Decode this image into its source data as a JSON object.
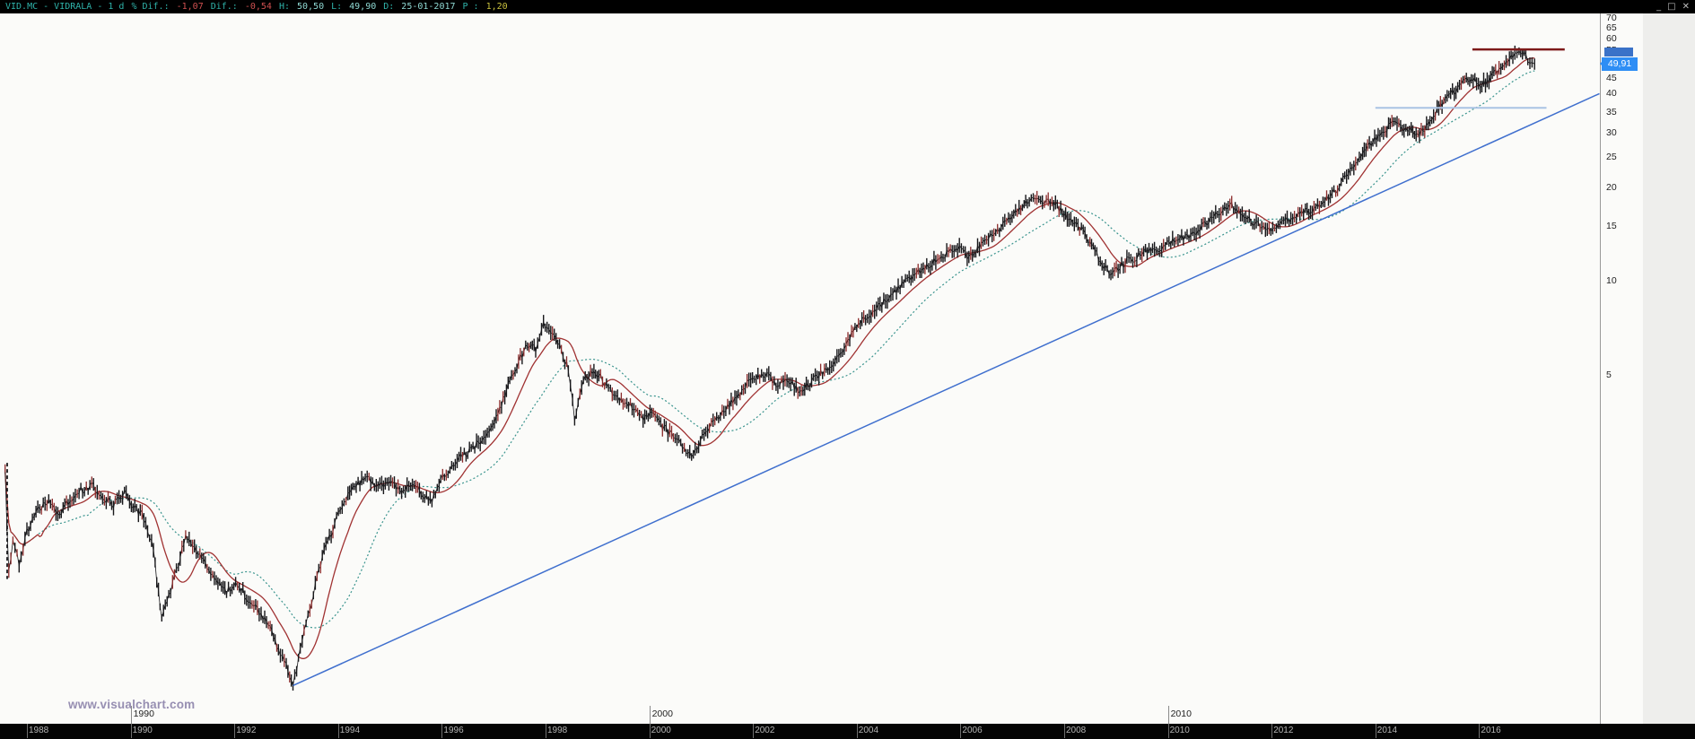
{
  "window": {
    "title_segments": [
      {
        "text": "VID.MC - VIDRALA - 1 d",
        "color": "#2fb3aa"
      },
      {
        "text": "% Dif.:",
        "color": "#2fb3aa"
      },
      {
        "text": "-1,07",
        "color": "#cf5050"
      },
      {
        "text": "Dif.:",
        "color": "#2fb3aa"
      },
      {
        "text": "-0,54",
        "color": "#cf5050"
      },
      {
        "text": "H:",
        "color": "#2fb3aa"
      },
      {
        "text": "50,50",
        "color": "#8fd8d2"
      },
      {
        "text": "L:",
        "color": "#2fb3aa"
      },
      {
        "text": "49,90",
        "color": "#8fd8d2"
      },
      {
        "text": "D:",
        "color": "#2fb3aa"
      },
      {
        "text": "25-01-2017",
        "color": "#8fd8d2"
      },
      {
        "text": "P :",
        "color": "#2fb3aa"
      },
      {
        "text": "1,20",
        "color": "#c9c13e"
      }
    ],
    "controls": {
      "minimize": "_",
      "maximize": "□",
      "close": "✕"
    }
  },
  "watermark": "www.visualchart.com",
  "chart_data": {
    "type": "candlestick",
    "symbol": "VID.MC",
    "name": "VIDRALA",
    "timeframe": "1 d",
    "stats": {
      "pct_diff": -1.07,
      "diff": -0.54,
      "high": 50.5,
      "low": 49.9,
      "date": "25-01-2017",
      "p": 1.2
    },
    "grid": false,
    "legend": false,
    "xlim": [
      1987.5,
      2018.3
    ],
    "ylim": [
      0.45,
      75
    ],
    "y_axis": {
      "scale": "log",
      "ticks": [
        70,
        65,
        60,
        55,
        50,
        45,
        40,
        35,
        30,
        25,
        20,
        15,
        10,
        5
      ],
      "last_price": {
        "label": "49,91",
        "value": 49.91
      }
    },
    "x_axis": {
      "ticks": [
        1988,
        1990,
        1992,
        1994,
        1996,
        1998,
        2000,
        2002,
        2004,
        2006,
        2008,
        2010,
        2012,
        2014,
        2016
      ],
      "decades": [
        {
          "label": "1990",
          "year": 1990
        },
        {
          "label": "2000",
          "year": 2000
        },
        {
          "label": "2010",
          "year": 2010
        }
      ]
    },
    "price_series": [
      [
        1987.58,
        2.43
      ],
      [
        1987.65,
        1.14
      ],
      [
        1987.73,
        1.45
      ],
      [
        1987.85,
        1.23
      ],
      [
        1988.0,
        1.57
      ],
      [
        1988.21,
        1.84
      ],
      [
        1988.42,
        1.96
      ],
      [
        1988.63,
        1.77
      ],
      [
        1988.83,
        1.99
      ],
      [
        1989.04,
        2.12
      ],
      [
        1989.25,
        2.19
      ],
      [
        1989.46,
        2.03
      ],
      [
        1989.67,
        1.91
      ],
      [
        1989.88,
        2.07
      ],
      [
        1990.08,
        1.87
      ],
      [
        1990.29,
        1.7
      ],
      [
        1990.44,
        1.34
      ],
      [
        1990.6,
        0.81
      ],
      [
        1990.77,
        1.01
      ],
      [
        1990.92,
        1.23
      ],
      [
        1991.06,
        1.51
      ],
      [
        1991.23,
        1.39
      ],
      [
        1991.44,
        1.23
      ],
      [
        1991.65,
        1.09
      ],
      [
        1991.85,
        1.01
      ],
      [
        1992.06,
        1.07
      ],
      [
        1992.27,
        0.95
      ],
      [
        1992.48,
        0.86
      ],
      [
        1992.69,
        0.76
      ],
      [
        1992.85,
        0.65
      ],
      [
        1993.0,
        0.58
      ],
      [
        1993.13,
        0.5
      ],
      [
        1993.27,
        0.65
      ],
      [
        1993.42,
        0.84
      ],
      [
        1993.56,
        1.05
      ],
      [
        1993.73,
        1.36
      ],
      [
        1993.9,
        1.59
      ],
      [
        1994.04,
        1.84
      ],
      [
        1994.19,
        2.07
      ],
      [
        1994.35,
        2.19
      ],
      [
        1994.56,
        2.34
      ],
      [
        1994.77,
        2.16
      ],
      [
        1994.98,
        2.28
      ],
      [
        1995.19,
        2.12
      ],
      [
        1995.4,
        2.19
      ],
      [
        1995.6,
        2.07
      ],
      [
        1995.81,
        1.96
      ],
      [
        1995.98,
        2.28
      ],
      [
        1996.19,
        2.53
      ],
      [
        1996.4,
        2.74
      ],
      [
        1996.6,
        2.92
      ],
      [
        1996.81,
        3.09
      ],
      [
        1996.98,
        3.49
      ],
      [
        1997.15,
        4.03
      ],
      [
        1997.31,
        4.8
      ],
      [
        1997.48,
        5.54
      ],
      [
        1997.65,
        6.2
      ],
      [
        1997.81,
        6.01
      ],
      [
        1997.96,
        7.33
      ],
      [
        1998.1,
        6.89
      ],
      [
        1998.27,
        6.11
      ],
      [
        1998.44,
        5.2
      ],
      [
        1998.56,
        3.55
      ],
      [
        1998.73,
        4.8
      ],
      [
        1998.9,
        5.12
      ],
      [
        1999.06,
        4.88
      ],
      [
        1999.25,
        4.51
      ],
      [
        1999.46,
        4.15
      ],
      [
        1999.67,
        3.93
      ],
      [
        1999.88,
        3.63
      ],
      [
        2000.08,
        3.72
      ],
      [
        2000.29,
        3.35
      ],
      [
        2000.5,
        3.1
      ],
      [
        2000.71,
        2.86
      ],
      [
        2000.85,
        2.74
      ],
      [
        2001.02,
        3.17
      ],
      [
        2001.23,
        3.49
      ],
      [
        2001.44,
        3.84
      ],
      [
        2001.65,
        4.15
      ],
      [
        2001.85,
        4.61
      ],
      [
        2002.06,
        4.88
      ],
      [
        2002.27,
        5.0
      ],
      [
        2002.48,
        4.61
      ],
      [
        2002.69,
        4.8
      ],
      [
        2002.9,
        4.36
      ],
      [
        2003.06,
        4.61
      ],
      [
        2003.27,
        5.0
      ],
      [
        2003.48,
        5.29
      ],
      [
        2003.69,
        5.87
      ],
      [
        2003.9,
        6.73
      ],
      [
        2004.1,
        7.45
      ],
      [
        2004.31,
        7.88
      ],
      [
        2004.52,
        8.55
      ],
      [
        2004.73,
        9.25
      ],
      [
        2004.94,
        10.0
      ],
      [
        2005.15,
        10.5
      ],
      [
        2005.35,
        11.1
      ],
      [
        2005.56,
        11.8
      ],
      [
        2005.77,
        12.3
      ],
      [
        2005.98,
        12.7
      ],
      [
        2006.13,
        12.0
      ],
      [
        2006.33,
        12.7
      ],
      [
        2006.54,
        13.8
      ],
      [
        2006.75,
        14.7
      ],
      [
        2006.96,
        16.0
      ],
      [
        2007.13,
        17.0
      ],
      [
        2007.29,
        17.9
      ],
      [
        2007.44,
        18.3
      ],
      [
        2007.58,
        17.5
      ],
      [
        2007.73,
        18.1
      ],
      [
        2007.9,
        17.0
      ],
      [
        2008.06,
        16.2
      ],
      [
        2008.23,
        15.3
      ],
      [
        2008.4,
        14.2
      ],
      [
        2008.56,
        12.7
      ],
      [
        2008.73,
        11.4
      ],
      [
        2008.9,
        10.4
      ],
      [
        2009.04,
        11.0
      ],
      [
        2009.21,
        11.6
      ],
      [
        2009.4,
        11.9
      ],
      [
        2009.6,
        12.5
      ],
      [
        2009.81,
        12.7
      ],
      [
        2010.02,
        13.2
      ],
      [
        2010.23,
        13.6
      ],
      [
        2010.44,
        14.0
      ],
      [
        2010.65,
        14.9
      ],
      [
        2010.85,
        16.0
      ],
      [
        2011.06,
        16.9
      ],
      [
        2011.23,
        17.4
      ],
      [
        2011.4,
        16.6
      ],
      [
        2011.6,
        15.6
      ],
      [
        2011.81,
        14.8
      ],
      [
        2012.02,
        14.5
      ],
      [
        2012.23,
        15.4
      ],
      [
        2012.44,
        16.2
      ],
      [
        2012.65,
        16.7
      ],
      [
        2012.85,
        17.2
      ],
      [
        2013.06,
        18.3
      ],
      [
        2013.27,
        19.9
      ],
      [
        2013.48,
        22.3
      ],
      [
        2013.69,
        24.9
      ],
      [
        2013.85,
        27.0
      ],
      [
        2014.02,
        28.8
      ],
      [
        2014.19,
        30.7
      ],
      [
        2014.35,
        32.3
      ],
      [
        2014.52,
        31.3
      ],
      [
        2014.69,
        30.3
      ],
      [
        2014.85,
        29.4
      ],
      [
        2015.02,
        32.3
      ],
      [
        2015.19,
        35.5
      ],
      [
        2015.35,
        38.5
      ],
      [
        2015.52,
        40.7
      ],
      [
        2015.69,
        43.1
      ],
      [
        2015.85,
        44.9
      ],
      [
        2016.02,
        42.4
      ],
      [
        2016.19,
        44.5
      ],
      [
        2016.35,
        47.4
      ],
      [
        2016.52,
        49.7
      ],
      [
        2016.65,
        53.0
      ],
      [
        2016.77,
        55.5
      ],
      [
        2016.9,
        53.0
      ],
      [
        2017.02,
        50.5
      ],
      [
        2017.07,
        49.9
      ]
    ],
    "annotations": {
      "trendline": {
        "from": [
          1993.13,
          0.5
        ],
        "to": [
          2018.32,
          40.0
        ]
      },
      "resistance": {
        "price": 55.5,
        "from": 2015.87,
        "to": 2017.65
      },
      "support": {
        "price": 36.0,
        "from": 2014.0,
        "to": 2017.3
      },
      "opening_range": {
        "year": 1987.62,
        "from": 2.6,
        "to": 1.1
      }
    },
    "colors": {
      "candle": "#17171a",
      "candle_down": "#8a2a2a",
      "ma_fast": "#a03232",
      "ma_slow": "#3a948e",
      "trend": "#3f6fce",
      "support": "#a9c3e4",
      "resistance": "#7d1a1a",
      "tag_bg": "#2e8ef5"
    }
  }
}
